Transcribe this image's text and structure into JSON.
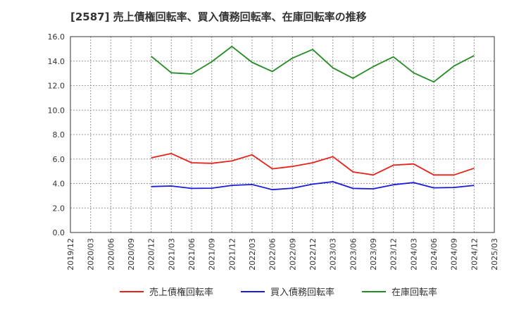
{
  "chart_data": {
    "type": "line",
    "title": "[2587]  売上債権回転率、買入債務回転率、在庫回転率の推移",
    "xlabel": "",
    "ylabel": "",
    "ylim": [
      0,
      16
    ],
    "y_ticks": [
      "0.0",
      "2.0",
      "4.0",
      "6.0",
      "8.0",
      "10.0",
      "12.0",
      "14.0",
      "16.0"
    ],
    "x_ticks": [
      "2019/12",
      "2020/03",
      "2020/06",
      "2020/09",
      "2020/12",
      "2021/03",
      "2021/06",
      "2021/09",
      "2021/12",
      "2022/03",
      "2022/06",
      "2022/09",
      "2022/12",
      "2023/03",
      "2023/06",
      "2023/09",
      "2023/12",
      "2024/03",
      "2024/06",
      "2024/09",
      "2024/12",
      "2025/03"
    ],
    "categories": [
      "2020/12",
      "2021/03",
      "2021/06",
      "2021/09",
      "2021/12",
      "2022/03",
      "2022/06",
      "2022/09",
      "2022/12",
      "2023/03",
      "2023/06",
      "2023/09",
      "2023/12",
      "2024/03",
      "2024/06",
      "2024/09",
      "2024/12"
    ],
    "series": [
      {
        "name": "売上債権回転率",
        "color": "#e8221a",
        "values": [
          6.1,
          6.45,
          5.7,
          5.65,
          5.85,
          6.35,
          5.2,
          5.4,
          5.7,
          6.2,
          4.95,
          4.7,
          5.5,
          5.6,
          4.7,
          4.7,
          5.25
        ]
      },
      {
        "name": "買入債務回転率",
        "color": "#1a1adc",
        "values": [
          3.75,
          3.8,
          3.6,
          3.62,
          3.85,
          3.92,
          3.5,
          3.62,
          3.95,
          4.15,
          3.6,
          3.57,
          3.9,
          4.08,
          3.65,
          3.68,
          3.85
        ]
      },
      {
        "name": "在庫回転率",
        "color": "#238c23",
        "values": [
          14.4,
          13.05,
          12.95,
          13.95,
          15.2,
          13.9,
          13.15,
          14.25,
          14.95,
          13.45,
          12.6,
          13.55,
          14.35,
          13.05,
          12.3,
          13.6,
          14.45
        ]
      }
    ],
    "grid": true,
    "legend_position": "bottom"
  }
}
